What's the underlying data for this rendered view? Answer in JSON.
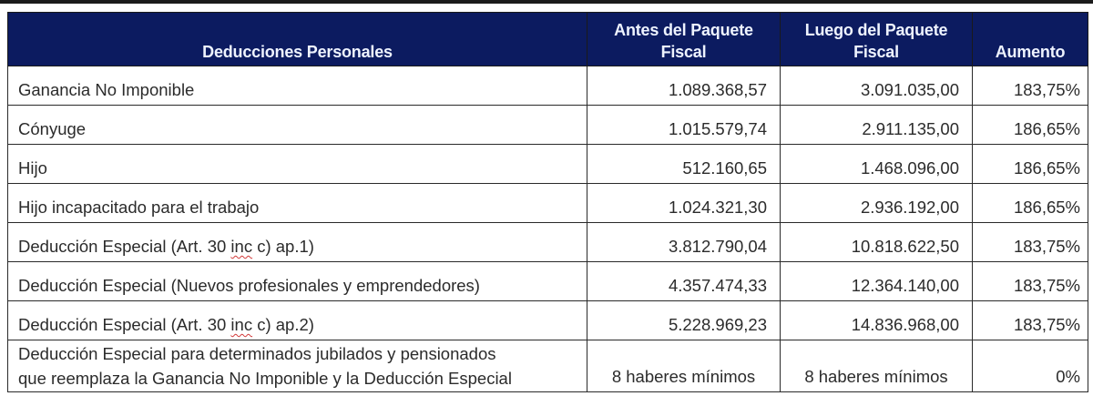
{
  "table": {
    "headers": {
      "deducciones": "Deducciones Personales",
      "antes": "Antes del Paquete Fiscal",
      "luego": "Luego del Paquete Fiscal",
      "aumento": "Aumento"
    },
    "rows": [
      {
        "label": "Ganancia No Imponible",
        "antes": "1.089.368,57",
        "luego": "3.091.035,00",
        "aumento": "183,75%"
      },
      {
        "label": "Cónyuge",
        "antes": "1.015.579,74",
        "luego": "2.911.135,00",
        "aumento": "186,65%"
      },
      {
        "label": "Hijo",
        "antes": "512.160,65",
        "luego": "1.468.096,00",
        "aumento": "186,65%"
      },
      {
        "label": "Hijo incapacitado para el trabajo",
        "antes": "1.024.321,30",
        "luego": "2.936.192,00",
        "aumento": "186,65%"
      },
      {
        "label_pre": "Deducción Especial (Art. 30 ",
        "label_spell": "inc",
        "label_post": " c) ap.1)",
        "antes": "3.812.790,04",
        "luego": "10.818.622,50",
        "aumento": "183,75%"
      },
      {
        "label": "Deducción Especial (Nuevos profesionales y emprendedores)",
        "antes": "4.357.474,33",
        "luego": "12.364.140,00",
        "aumento": "183,75%"
      },
      {
        "label_pre": "Deducción Especial (Art. 30 ",
        "label_spell": "inc",
        "label_post": " c) ap.2)",
        "antes": "5.228.969,23",
        "luego": "14.836.968,00",
        "aumento": "183,75%"
      },
      {
        "label_line1": "Deducción Especial para determinados jubilados y pensionados",
        "label_line2": "que reemplaza la Ganancia No Imponible y la Deducción Especial",
        "antes": "8 haberes mínimos",
        "luego": "8 haberes mínimos",
        "aumento": "0%"
      }
    ]
  },
  "colors": {
    "header_bg": "#0c1b60",
    "header_text": "#eef3ff",
    "cell_text": "#2b2b2b",
    "border": "#2a2a2a",
    "spellcheck_underline": "#d23a3a"
  }
}
